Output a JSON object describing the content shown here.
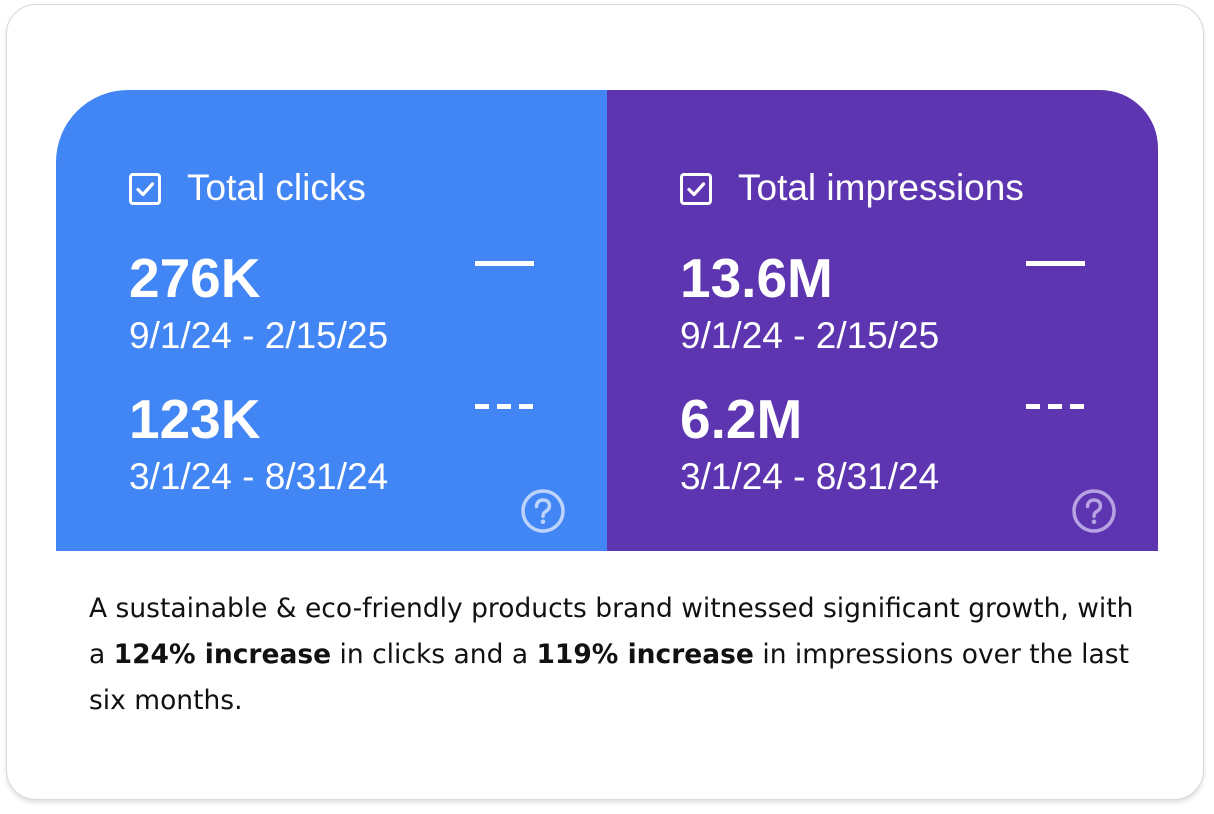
{
  "metrics": {
    "clicks": {
      "title": "Total clicks",
      "current_value": "276K",
      "current_range": "9/1/24 - 2/15/25",
      "previous_value": "123K",
      "previous_range": "3/1/24 - 8/31/24",
      "background_color": "#4285f4",
      "checked": true
    },
    "impressions": {
      "title": "Total impressions",
      "current_value": "13.6M",
      "current_range": "9/1/24 - 2/15/25",
      "previous_value": "6.2M",
      "previous_range": "3/1/24 - 8/31/24",
      "background_color": "#5e35b1",
      "checked": true
    }
  },
  "caption": {
    "text_1": "A sustainable & eco-friendly products brand witnessed significant growth, with a ",
    "clicks_increase": "124% increase",
    "text_2": " in clicks and a ",
    "impressions_increase": "119% increase",
    "text_3": " in impressions over the last six months."
  },
  "icons": {
    "checkbox": "checkbox-checked-icon",
    "help": "help-circle-icon"
  }
}
